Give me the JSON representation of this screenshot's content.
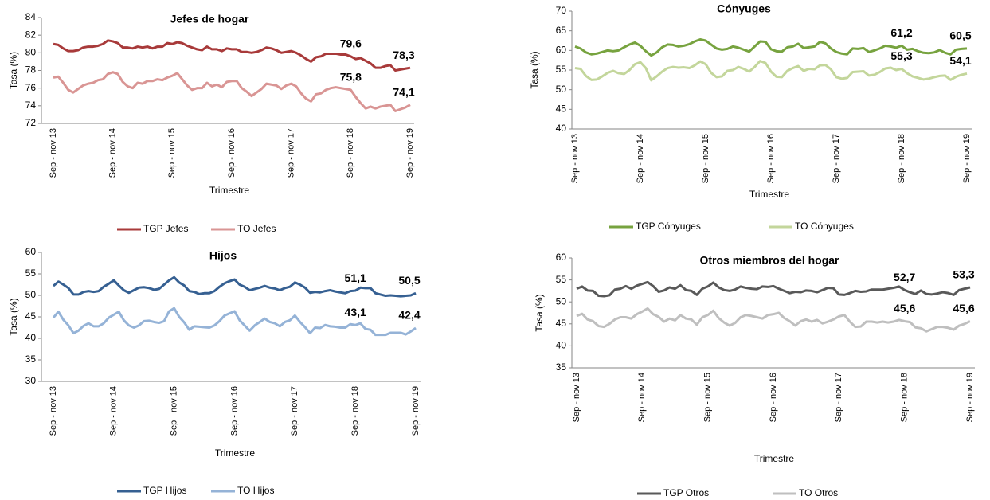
{
  "chart_data": [
    {
      "type": "line",
      "title": "Jefes de hogar",
      "x_label": "Trimestre",
      "y_label": "Tasa (%)",
      "categories": [
        "Sep - nov 13",
        null,
        null,
        null,
        null,
        null,
        null,
        null,
        null,
        null,
        null,
        null,
        "Sep - nov 14",
        null,
        null,
        null,
        null,
        null,
        null,
        null,
        null,
        null,
        null,
        null,
        "Sep - nov 15",
        null,
        null,
        null,
        null,
        null,
        null,
        null,
        null,
        null,
        null,
        null,
        "Sep - nov 16",
        null,
        null,
        null,
        null,
        null,
        null,
        null,
        null,
        null,
        null,
        null,
        "Sep - nov 17",
        null,
        null,
        null,
        null,
        null,
        null,
        null,
        null,
        null,
        null,
        null,
        "Sep - nov 18",
        null,
        null,
        null,
        null,
        null,
        null,
        null,
        null,
        null,
        null,
        null,
        "Sep - nov 19"
      ],
      "ylim": [
        72,
        84
      ],
      "yticks": [
        72,
        74,
        76,
        78,
        80,
        82,
        84
      ],
      "legend": "bottom",
      "series": [
        {
          "name": "TGP Jefes",
          "color": "#a83a3a",
          "values": [
            81.0,
            80.9,
            80.5,
            80.2,
            80.2,
            80.3,
            80.6,
            80.7,
            80.7,
            80.8,
            81.0,
            81.4,
            81.3,
            81.1,
            80.6,
            80.6,
            80.5,
            80.7,
            80.6,
            80.7,
            80.5,
            80.7,
            80.7,
            81.1,
            81.0,
            81.2,
            81.1,
            80.8,
            80.6,
            80.4,
            80.3,
            80.7,
            80.4,
            80.4,
            80.2,
            80.5,
            80.4,
            80.4,
            80.1,
            80.1,
            80.0,
            80.1,
            80.3,
            80.6,
            80.5,
            80.3,
            80.0,
            80.1,
            80.2,
            80.0,
            79.7,
            79.3,
            79.0,
            79.5,
            79.6,
            79.9,
            79.9,
            79.9,
            79.8,
            79.8,
            79.6,
            79.3,
            79.4,
            79.1,
            78.8,
            78.3,
            78.3,
            78.5,
            78.6,
            78.0,
            78.1,
            78.2,
            78.3
          ],
          "labels": [
            {
              "at": 60,
              "label": "79,6"
            },
            {
              "at": 72,
              "label": "78,3"
            }
          ]
        },
        {
          "name": "TO Jefes",
          "color": "#d99594",
          "values": [
            77.2,
            77.3,
            76.6,
            75.8,
            75.5,
            75.9,
            76.3,
            76.5,
            76.6,
            76.9,
            77.0,
            77.6,
            77.8,
            77.6,
            76.7,
            76.2,
            76.0,
            76.6,
            76.5,
            76.8,
            76.8,
            77.0,
            76.9,
            77.2,
            77.4,
            77.7,
            77.0,
            76.3,
            75.8,
            76.0,
            76.0,
            76.6,
            76.2,
            76.4,
            76.1,
            76.7,
            76.8,
            76.8,
            76.0,
            75.6,
            75.1,
            75.5,
            75.9,
            76.5,
            76.4,
            76.3,
            75.9,
            76.3,
            76.5,
            76.2,
            75.4,
            74.8,
            74.5,
            75.3,
            75.4,
            75.8,
            76.0,
            76.1,
            76.0,
            75.9,
            75.8,
            75.0,
            74.3,
            73.7,
            73.9,
            73.7,
            73.9,
            74.0,
            74.1,
            73.4,
            73.6,
            73.8,
            74.1
          ],
          "labels": [
            {
              "at": 60,
              "label": "75,8"
            },
            {
              "at": 72,
              "label": "74,1"
            }
          ]
        }
      ]
    },
    {
      "type": "line",
      "title": "Cónyuges",
      "x_label": "Trimestre",
      "y_label": "Tasa (%)",
      "categories": [
        "Sep - nov 13",
        null,
        null,
        null,
        null,
        null,
        null,
        null,
        null,
        null,
        null,
        null,
        "Sep - nov 14",
        null,
        null,
        null,
        null,
        null,
        null,
        null,
        null,
        null,
        null,
        null,
        "Sep - nov 15",
        null,
        null,
        null,
        null,
        null,
        null,
        null,
        null,
        null,
        null,
        null,
        "Sep - nov 16",
        null,
        null,
        null,
        null,
        null,
        null,
        null,
        null,
        null,
        null,
        null,
        "Sep - nov 17",
        null,
        null,
        null,
        null,
        null,
        null,
        null,
        null,
        null,
        null,
        null,
        "Sep - nov 18",
        null,
        null,
        null,
        null,
        null,
        null,
        null,
        null,
        null,
        null,
        null,
        "Sep - nov 19"
      ],
      "ylim": [
        40,
        70
      ],
      "yticks": [
        40,
        45,
        50,
        55,
        60,
        65,
        70
      ],
      "legend": "bottom",
      "series": [
        {
          "name": "TGP Cónyuges",
          "color": "#77a33f",
          "values": [
            61.0,
            60.5,
            59.5,
            59.0,
            59.2,
            59.6,
            60.0,
            59.8,
            60.0,
            60.8,
            61.5,
            62.0,
            61.2,
            59.8,
            58.7,
            59.5,
            60.8,
            61.5,
            61.4,
            61.0,
            61.2,
            61.6,
            62.3,
            62.8,
            62.5,
            61.5,
            60.5,
            60.2,
            60.4,
            61.0,
            60.7,
            60.2,
            59.7,
            61.0,
            62.3,
            62.2,
            60.3,
            59.8,
            59.7,
            60.8,
            61.0,
            61.7,
            60.6,
            60.8,
            61.0,
            62.2,
            61.8,
            60.5,
            59.6,
            59.2,
            59.0,
            60.5,
            60.4,
            60.6,
            59.6,
            60.0,
            60.5,
            61.2,
            61.0,
            60.7,
            61.2,
            60.2,
            60.4,
            59.8,
            59.4,
            59.3,
            59.5,
            60.1,
            59.4,
            59.0,
            60.2,
            60.4,
            60.5
          ],
          "labels": [
            {
              "at": 60,
              "label": "61,2"
            },
            {
              "at": 72,
              "label": "60,5"
            }
          ]
        },
        {
          "name": "TO Cónyuges",
          "color": "#c3d69b",
          "values": [
            55.5,
            55.3,
            53.5,
            52.5,
            52.6,
            53.4,
            54.3,
            54.8,
            54.2,
            54.0,
            55.0,
            56.5,
            57.0,
            55.5,
            52.4,
            53.4,
            54.6,
            55.5,
            55.8,
            55.6,
            55.7,
            55.5,
            56.2,
            57.2,
            56.5,
            54.3,
            53.2,
            53.4,
            54.8,
            55.0,
            55.8,
            55.3,
            54.6,
            55.8,
            57.3,
            56.8,
            54.6,
            53.3,
            53.2,
            54.8,
            55.5,
            56.0,
            54.8,
            55.3,
            55.2,
            56.2,
            56.3,
            55.2,
            53.2,
            52.8,
            53.0,
            54.5,
            54.6,
            54.7,
            53.6,
            53.8,
            54.5,
            55.4,
            55.6,
            55.0,
            55.3,
            54.2,
            53.4,
            53.0,
            52.6,
            52.8,
            53.2,
            53.5,
            53.6,
            52.5,
            53.3,
            53.8,
            54.1
          ],
          "labels": [
            {
              "at": 60,
              "label": "55,3"
            },
            {
              "at": 72,
              "label": "54,1"
            }
          ]
        }
      ]
    },
    {
      "type": "line",
      "title": "Hijos",
      "x_label": "Trimestre",
      "y_label": "Tasa (%)",
      "categories": [
        "Sep - nov 13",
        null,
        null,
        null,
        null,
        null,
        null,
        null,
        null,
        null,
        null,
        null,
        "Sep - nov 14",
        null,
        null,
        null,
        null,
        null,
        null,
        null,
        null,
        null,
        null,
        null,
        "Sep - nov 15",
        null,
        null,
        null,
        null,
        null,
        null,
        null,
        null,
        null,
        null,
        null,
        "Sep - nov 16",
        null,
        null,
        null,
        null,
        null,
        null,
        null,
        null,
        null,
        null,
        null,
        "Sep - nov 17",
        null,
        null,
        null,
        null,
        null,
        null,
        null,
        null,
        null,
        null,
        null,
        "Sep - nov 18",
        null,
        null,
        null,
        null,
        null,
        null,
        null,
        null,
        null,
        null,
        null,
        "Sep - nov 19"
      ],
      "ylim": [
        30,
        60
      ],
      "yticks": [
        30,
        35,
        40,
        45,
        50,
        55,
        60
      ],
      "legend": "bottom",
      "series": [
        {
          "name": "TGP Hijos",
          "color": "#366092",
          "values": [
            52.2,
            53.2,
            52.5,
            51.7,
            50.2,
            50.2,
            50.8,
            51.0,
            50.8,
            51.0,
            52.0,
            52.7,
            53.5,
            52.3,
            51.2,
            50.6,
            51.2,
            51.8,
            51.9,
            51.7,
            51.3,
            51.5,
            52.5,
            53.5,
            54.2,
            53.0,
            52.3,
            51.0,
            50.8,
            50.3,
            50.5,
            50.5,
            51.0,
            52.0,
            52.8,
            53.3,
            53.7,
            52.5,
            52.0,
            51.2,
            51.5,
            51.8,
            52.2,
            51.8,
            51.6,
            51.2,
            51.7,
            52.0,
            53.0,
            52.5,
            51.8,
            50.6,
            50.8,
            50.7,
            51.0,
            51.2,
            50.9,
            50.7,
            50.5,
            51.0,
            51.1,
            51.8,
            51.7,
            51.7,
            50.5,
            50.2,
            49.9,
            50.0,
            49.9,
            49.8,
            49.9,
            50.0,
            50.5
          ],
          "labels": [
            {
              "at": 60,
              "label": "51,1"
            },
            {
              "at": 72,
              "label": "50,5"
            }
          ]
        },
        {
          "name": "TO Hijos",
          "color": "#95b3d7",
          "values": [
            44.8,
            46.2,
            44.3,
            43.0,
            41.2,
            41.8,
            42.9,
            43.5,
            42.8,
            42.8,
            43.5,
            44.8,
            45.5,
            46.2,
            44.2,
            43.0,
            42.5,
            43.0,
            44.0,
            44.1,
            43.8,
            43.6,
            44.0,
            46.3,
            47.0,
            45.0,
            43.7,
            42.0,
            42.8,
            42.7,
            42.6,
            42.5,
            43.0,
            44.0,
            45.3,
            45.8,
            46.3,
            44.2,
            43.0,
            41.8,
            43.0,
            43.8,
            44.6,
            43.8,
            43.5,
            42.8,
            43.8,
            44.2,
            45.3,
            43.8,
            42.6,
            41.2,
            42.5,
            42.4,
            43.1,
            42.8,
            42.7,
            42.5,
            42.5,
            43.3,
            43.1,
            43.5,
            42.2,
            42.0,
            40.8,
            40.8,
            40.8,
            41.3,
            41.3,
            41.3,
            40.9,
            41.6,
            42.4
          ],
          "labels": [
            {
              "at": 60,
              "label": "43,1"
            },
            {
              "at": 72,
              "label": "42,4"
            }
          ]
        }
      ]
    },
    {
      "type": "line",
      "title": "Otros miembros del hogar",
      "x_label": "Trimestre",
      "y_label": "Tasa (%)",
      "categories": [
        "Sep - nov 13",
        null,
        null,
        null,
        null,
        null,
        null,
        null,
        null,
        null,
        null,
        null,
        "Sep - nov 14",
        null,
        null,
        null,
        null,
        null,
        null,
        null,
        null,
        null,
        null,
        null,
        "Sep - nov 15",
        null,
        null,
        null,
        null,
        null,
        null,
        null,
        null,
        null,
        null,
        null,
        "Sep - nov 16",
        null,
        null,
        null,
        null,
        null,
        null,
        null,
        null,
        null,
        null,
        null,
        "Sep - nov 17",
        null,
        null,
        null,
        null,
        null,
        null,
        null,
        null,
        null,
        null,
        null,
        "Sep - nov 18",
        null,
        null,
        null,
        null,
        null,
        null,
        null,
        null,
        null,
        null,
        null,
        "Sep - nov 19"
      ],
      "ylim": [
        35,
        60
      ],
      "yticks": [
        35,
        40,
        45,
        50,
        55,
        60
      ],
      "legend": "bottom",
      "series": [
        {
          "name": "TGP Otros",
          "color": "#595959",
          "values": [
            53.0,
            53.5,
            52.6,
            52.5,
            51.4,
            51.3,
            51.5,
            52.8,
            53.0,
            53.6,
            53.0,
            53.7,
            54.1,
            54.5,
            53.6,
            52.3,
            52.6,
            53.3,
            53.0,
            53.8,
            52.7,
            52.5,
            51.6,
            53.0,
            53.5,
            54.4,
            53.3,
            52.7,
            52.5,
            52.8,
            53.5,
            53.2,
            53.0,
            52.9,
            53.5,
            53.4,
            53.6,
            53.0,
            52.5,
            52.0,
            52.3,
            52.2,
            52.6,
            52.5,
            52.2,
            52.7,
            53.2,
            53.1,
            51.7,
            51.6,
            52.0,
            52.5,
            52.3,
            52.4,
            52.8,
            52.8,
            52.8,
            53.0,
            53.2,
            53.5,
            52.7,
            52.2,
            51.8,
            52.6,
            51.8,
            51.7,
            51.9,
            52.2,
            52.0,
            51.6,
            52.7,
            53.0,
            53.3
          ],
          "labels": [
            {
              "at": 60,
              "label": "52,7"
            },
            {
              "at": 72,
              "label": "53,3"
            }
          ]
        },
        {
          "name": "TO Otros",
          "color": "#bfbfbf",
          "values": [
            46.8,
            47.3,
            46.0,
            45.6,
            44.5,
            44.3,
            45.0,
            46.0,
            46.5,
            46.5,
            46.2,
            47.2,
            47.8,
            48.5,
            47.2,
            46.6,
            45.5,
            46.2,
            45.8,
            47.0,
            46.2,
            46.0,
            44.8,
            46.5,
            47.0,
            48.0,
            46.3,
            45.3,
            44.6,
            45.2,
            46.5,
            47.0,
            46.8,
            46.5,
            46.2,
            47.0,
            47.2,
            47.5,
            46.3,
            45.6,
            44.6,
            45.6,
            46.0,
            45.5,
            45.9,
            45.1,
            45.5,
            46.0,
            46.7,
            47.0,
            45.5,
            44.3,
            44.4,
            45.5,
            45.5,
            45.3,
            45.5,
            45.3,
            45.5,
            45.9,
            45.6,
            45.4,
            44.2,
            44.0,
            43.3,
            43.8,
            44.3,
            44.3,
            44.1,
            43.7,
            44.6,
            45.0,
            45.6
          ],
          "labels": [
            {
              "at": 60,
              "label": "45,6"
            },
            {
              "at": 72,
              "label": "45,6"
            }
          ]
        }
      ]
    }
  ]
}
